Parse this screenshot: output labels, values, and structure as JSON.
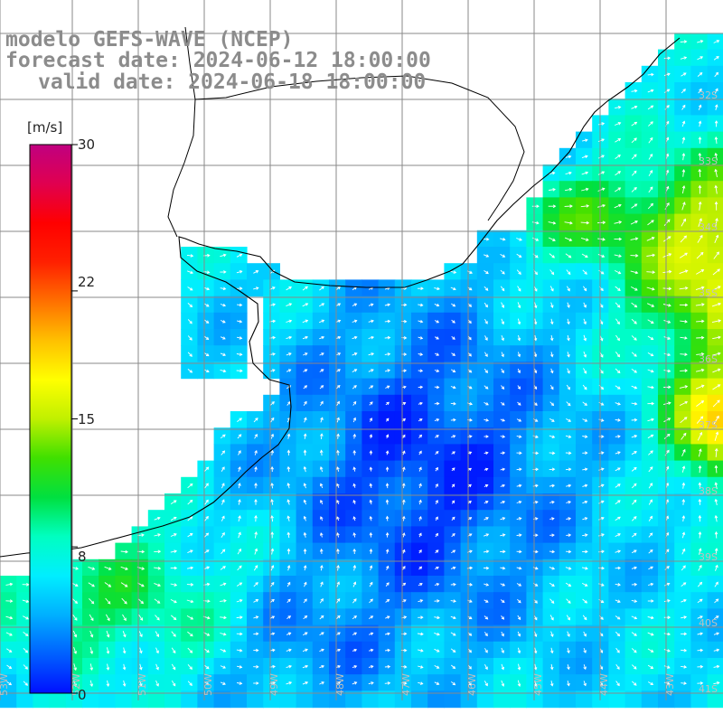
{
  "title": {
    "line1": "modelo GEFS-WAVE (NCEP)",
    "line2": "forecast date: 2024-06-12 18:00:00",
    "line3": "valid date: 2024-06-18 18:00:00"
  },
  "colorbar": {
    "unit": "[m/s]",
    "ticks": [
      "30",
      "22",
      "15",
      "8",
      "0"
    ],
    "tick_values": [
      30,
      22,
      15,
      8,
      0
    ],
    "min": 0,
    "max": 30,
    "colors": [
      "#0010ff",
      "#0060ff",
      "#00b0ff",
      "#00eeff",
      "#00ffc0",
      "#00e040",
      "#40e000",
      "#c0f000",
      "#ffff00",
      "#ffc000",
      "#ff7000",
      "#ff2000",
      "#ff0000",
      "#e00050",
      "#c00080"
    ]
  },
  "map": {
    "variable": "wind speed",
    "land_color": "#ffffff",
    "grid_color": "#8a8a8a",
    "coast_color": "#000000",
    "vector_color": "#ffffff",
    "lon_labels": [
      "53W",
      "52W",
      "51W",
      "50W",
      "49W",
      "48W",
      "47W",
      "46W",
      "45W",
      "44W",
      "43W"
    ],
    "lat_labels": [
      "32S",
      "33S",
      "34S",
      "35S",
      "36S",
      "37S",
      "38S",
      "39S",
      "40S",
      "41S"
    ],
    "high_wind_region": "east edge, ~16-22 m/s",
    "low_wind_region": "central basin, ~1-3 m/s"
  }
}
